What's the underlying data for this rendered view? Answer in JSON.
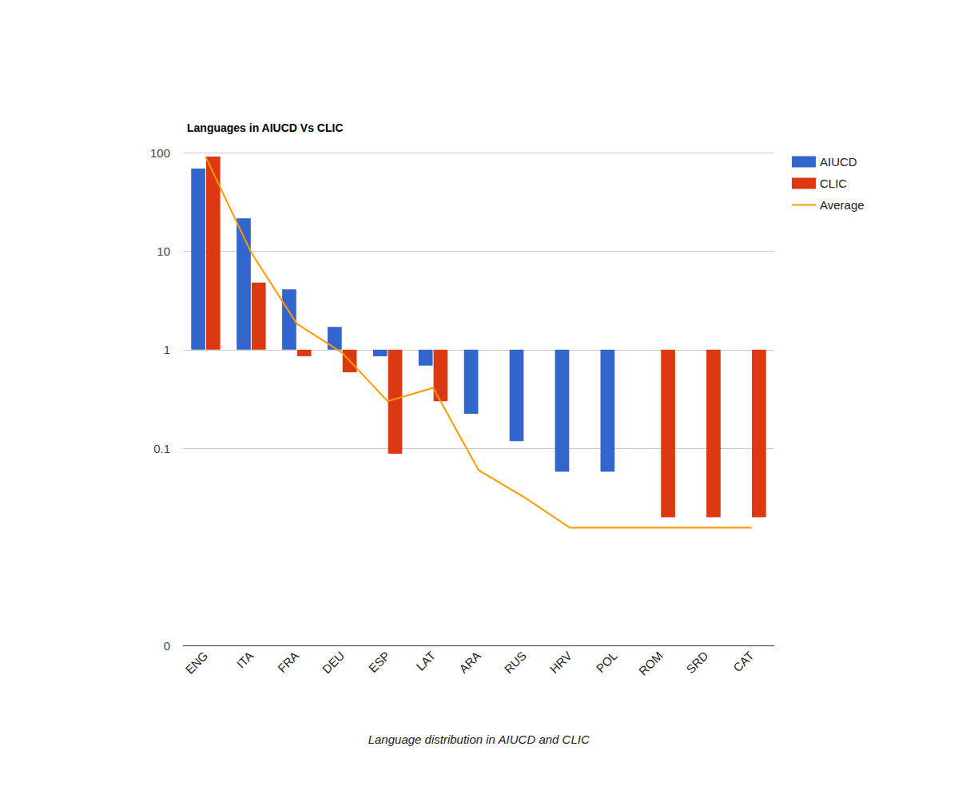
{
  "chart_data": {
    "type": "bar",
    "title": "Languages in AIUCD Vs CLIC",
    "caption": "Language distribution in AIUCD and CLIC",
    "categories": [
      "ENG",
      "ITA",
      "FRA",
      "DEU",
      "ESP",
      "LAT",
      "ARA",
      "RUS",
      "HRV",
      "POL",
      "ROM",
      "SRD",
      "CAT"
    ],
    "series": [
      {
        "name": "AIUCD",
        "type": "bar",
        "color": "#3366cc",
        "values": [
          69,
          21.6,
          4.1,
          1.7,
          0.86,
          0.69,
          0.224,
          0.118,
          0.058,
          0.058,
          null,
          null,
          null
        ]
      },
      {
        "name": "CLIC",
        "type": "bar",
        "color": "#dc3912",
        "values": [
          91,
          4.8,
          0.86,
          0.59,
          0.088,
          0.3,
          null,
          null,
          null,
          null,
          0.02,
          0.02,
          0.02
        ]
      },
      {
        "name": "Average",
        "type": "line",
        "color": "#ff9900",
        "values": [
          90,
          9.7,
          1.84,
          0.93,
          0.3,
          0.41,
          0.06,
          0.032,
          0.0157,
          0.0157,
          0.0157,
          0.0157,
          0.0157
        ]
      }
    ],
    "log": "y",
    "ylim": [
      0.001,
      100
    ],
    "yticks": [
      {
        "value": 0.001,
        "label": "0"
      },
      0.1,
      1,
      10,
      100
    ],
    "grid": true,
    "legend": "right"
  }
}
